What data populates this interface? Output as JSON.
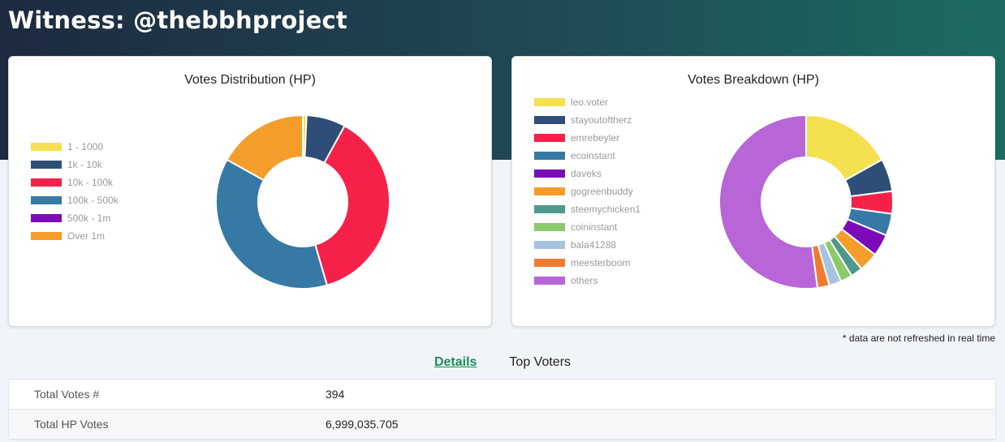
{
  "page": {
    "title": "Witness: @thebbhproject"
  },
  "distribution_chart": {
    "title": "Votes Distribution (HP)",
    "legend": [
      {
        "label": "1 - 1000",
        "color": "#f5e050"
      },
      {
        "label": "1k - 10k",
        "color": "#2e4e78"
      },
      {
        "label": "10k - 100k",
        "color": "#f52149"
      },
      {
        "label": "100k - 500k",
        "color": "#3779a5"
      },
      {
        "label": "500k - 1m",
        "color": "#7b0bb8"
      },
      {
        "label": "Over 1m",
        "color": "#f59d2a"
      }
    ]
  },
  "breakdown_chart": {
    "title": "Votes Breakdown (HP)",
    "legend": [
      {
        "label": "leo.voter",
        "color": "#f5e050"
      },
      {
        "label": "stayoutoftherz",
        "color": "#2e4e78"
      },
      {
        "label": "emrebeyler",
        "color": "#f52149"
      },
      {
        "label": "ecoinstant",
        "color": "#3779a5"
      },
      {
        "label": "daveks",
        "color": "#7b0bb8"
      },
      {
        "label": "gogreenbuddy",
        "color": "#f59d2a"
      },
      {
        "label": "steemychicken1",
        "color": "#4e9a8a"
      },
      {
        "label": "coininstant",
        "color": "#8cc96b"
      },
      {
        "label": "bala41288",
        "color": "#a5c3de"
      },
      {
        "label": "meesterboom",
        "color": "#f07a30"
      },
      {
        "label": "others",
        "color": "#b865d8"
      }
    ]
  },
  "chart_data": [
    {
      "type": "pie",
      "title": "Votes Distribution (HP)",
      "categories": [
        "1 - 1000",
        "1k - 10k",
        "10k - 100k",
        "100k - 500k",
        "500k - 1m",
        "Over 1m"
      ],
      "values": [
        0.7,
        7.3,
        37.5,
        37.6,
        0,
        16.9
      ],
      "colors": [
        "#f5e050",
        "#2e4e78",
        "#f52149",
        "#3779a5",
        "#7b0bb8",
        "#f59d2a"
      ],
      "legend": "left"
    },
    {
      "type": "pie",
      "title": "Votes Breakdown (HP)",
      "categories": [
        "leo.voter",
        "stayoutoftherz",
        "emrebeyler",
        "ecoinstant",
        "daveks",
        "gogreenbuddy",
        "steemychicken1",
        "coininstant",
        "bala41288",
        "meesterboom",
        "others"
      ],
      "values": [
        16.9,
        6.1,
        4.2,
        4.1,
        4.1,
        3.6,
        2.2,
        2.2,
        2.3,
        2.2,
        52.1
      ],
      "colors": [
        "#f5e050",
        "#2e4e78",
        "#f52149",
        "#3779a5",
        "#7b0bb8",
        "#f59d2a",
        "#4e9a8a",
        "#8cc96b",
        "#a5c3de",
        "#f07a30",
        "#b865d8"
      ],
      "legend": "left"
    }
  ],
  "note": {
    "text": "* data are not refreshed in real time"
  },
  "tabs": [
    {
      "label": "Details",
      "active": true
    },
    {
      "label": "Top Voters",
      "active": false
    }
  ],
  "details": [
    {
      "key": "Total Votes #",
      "value": "394"
    },
    {
      "key": "Total HP Votes",
      "value": "6,999,035.705"
    }
  ]
}
